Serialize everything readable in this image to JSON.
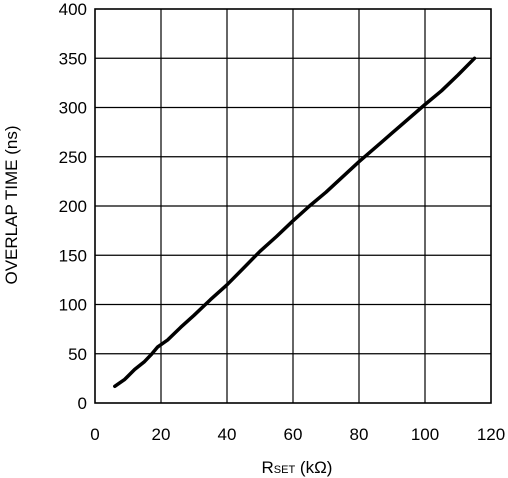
{
  "chart_data": {
    "type": "line",
    "title": "",
    "xlabel": {
      "main": "R",
      "subscript": "SET",
      "unit": " (kΩ)"
    },
    "ylabel": "OVERLAP TIME (ns)",
    "xlim": [
      0,
      120
    ],
    "ylim": [
      0,
      400
    ],
    "x_ticks": [
      "0",
      "20",
      "40",
      "60",
      "80",
      "100",
      "120"
    ],
    "y_ticks": [
      "0",
      "50",
      "100",
      "150",
      "200",
      "250",
      "300",
      "350",
      "400"
    ],
    "grid": true,
    "series": [
      {
        "color": "#000000",
        "x": [
          6,
          9,
          12,
          15,
          17,
          19,
          22,
          26,
          30,
          35,
          40,
          45,
          50,
          55,
          60,
          65,
          70,
          80,
          90,
          100,
          105,
          110,
          115
        ],
        "y": [
          17,
          24,
          34,
          42,
          49,
          57,
          64,
          77,
          89,
          105,
          120,
          137,
          154,
          169,
          185,
          200,
          214,
          245,
          274,
          303,
          317,
          333,
          350
        ]
      }
    ]
  }
}
